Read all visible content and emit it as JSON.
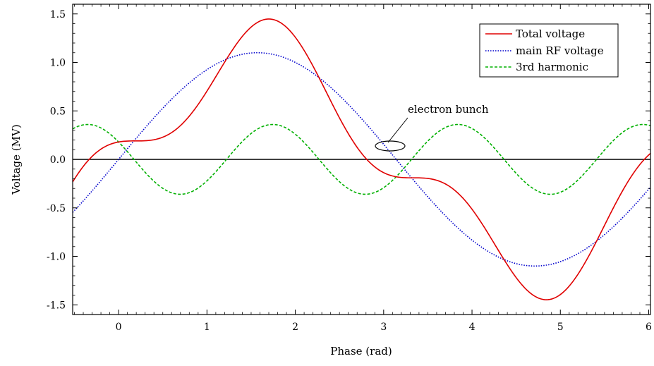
{
  "chart_data": {
    "type": "line",
    "title": "",
    "xlabel": "Phase (rad)",
    "ylabel": "Voltage (MV)",
    "xlim": [
      -0.52,
      6.02
    ],
    "ylim": [
      -1.6,
      1.6
    ],
    "xticks": [
      0,
      1,
      2,
      3,
      4,
      5,
      6
    ],
    "xtick_labels": [
      "0",
      "1",
      "2",
      "3",
      "4",
      "5",
      "6"
    ],
    "yticks": [
      -1.5,
      -1.0,
      -0.5,
      0.0,
      0.5,
      1.0,
      1.5
    ],
    "ytick_labels": [
      "-1.5",
      "-1.0",
      "-0.5",
      "0.0",
      "0.5",
      "1.0",
      "1.5"
    ],
    "grid": false,
    "legend_position": "top-right",
    "sample_step": 0.02,
    "series": [
      {
        "name": "Total voltage",
        "color": "#e00000",
        "dash": "solid",
        "model": {
          "main_amplitude": 1.1,
          "harmonic_amplitude": 0.36,
          "harmonic_order": 3,
          "harmonic_phase": 2.62
        }
      },
      {
        "name": "main RF voltage",
        "color": "#0000cc",
        "dash": "dotted",
        "model": {
          "main_amplitude": 1.1
        }
      },
      {
        "name": "3rd harmonic",
        "color": "#00b000",
        "dash": "dashed",
        "model": {
          "harmonic_amplitude": 0.36,
          "harmonic_order": 3,
          "harmonic_phase": 2.62
        }
      }
    ],
    "annotations": [
      {
        "text": "electron bunch",
        "target_x": 3.05,
        "target_y": 0.14
      }
    ]
  }
}
